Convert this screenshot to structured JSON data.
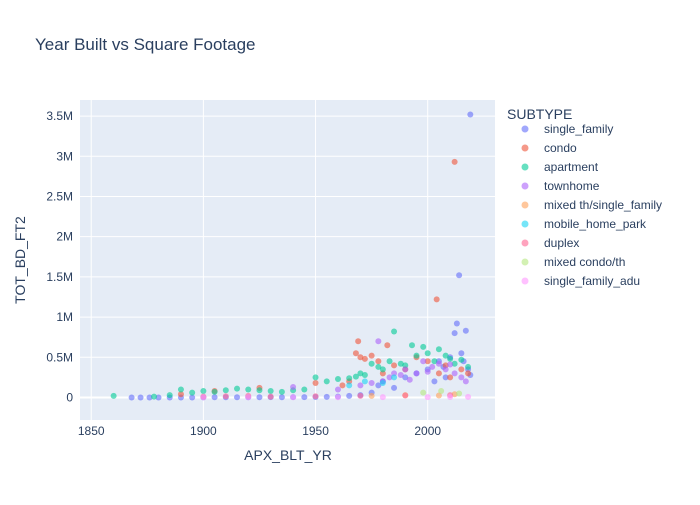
{
  "chart_data": {
    "type": "scatter",
    "title": "Year Built vs Square Footage",
    "xlabel": "APX_BLT_YR",
    "ylabel": "TOT_BD_FT2",
    "xlim": [
      1845,
      2030
    ],
    "ylim": [
      -280000,
      3700000
    ],
    "x_ticks": [
      1850,
      1900,
      1950,
      2000
    ],
    "y_ticks": [
      {
        "value": 0,
        "label": "0"
      },
      {
        "value": 500000,
        "label": "0.5M"
      },
      {
        "value": 1000000,
        "label": "1M"
      },
      {
        "value": 1500000,
        "label": "1.5M"
      },
      {
        "value": 2000000,
        "label": "2M"
      },
      {
        "value": 2500000,
        "label": "2.5M"
      },
      {
        "value": 3000000,
        "label": "3M"
      },
      {
        "value": 3500000,
        "label": "3.5M"
      }
    ],
    "grid": true,
    "legend_title": "SUBTYPE",
    "legend_position": "right",
    "series": [
      {
        "name": "single_family",
        "color": "#636efa",
        "x": [
          1868,
          1872,
          1876,
          1880,
          1885,
          1890,
          1895,
          1900,
          1905,
          1910,
          1915,
          1920,
          1925,
          1930,
          1935,
          1940,
          1945,
          1950,
          1955,
          1960,
          1965,
          1970,
          1975,
          1978,
          1980,
          1985,
          1990,
          1995,
          2000,
          2003,
          2005,
          2007,
          2008,
          2010,
          2012,
          2013,
          2014,
          2015,
          2016,
          2017,
          2018,
          2019,
          2019
        ],
        "y": [
          0,
          0,
          0,
          0,
          0,
          0,
          0,
          2000,
          3000,
          2500,
          3000,
          3500,
          3000,
          4000,
          3500,
          4000,
          5000,
          6000,
          8000,
          10000,
          20000,
          30000,
          60000,
          150000,
          200000,
          120000,
          250000,
          300000,
          350000,
          200000,
          450000,
          380000,
          250000,
          500000,
          800000,
          920000,
          1520000,
          550000,
          450000,
          830000,
          350000,
          3520000,
          280000
        ]
      },
      {
        "name": "condo",
        "color": "#ef553b",
        "x": [
          1890,
          1905,
          1925,
          1950,
          1962,
          1965,
          1968,
          1969,
          1970,
          1972,
          1975,
          1978,
          1980,
          1982,
          1985,
          1990,
          1995,
          2000,
          2004,
          2005,
          2008,
          2010,
          2012,
          2015,
          2018
        ],
        "y": [
          40000,
          80000,
          120000,
          180000,
          150000,
          200000,
          550000,
          700000,
          500000,
          480000,
          520000,
          450000,
          300000,
          650000,
          400000,
          350000,
          500000,
          450000,
          1220000,
          300000,
          400000,
          250000,
          2930000,
          350000,
          300000
        ]
      },
      {
        "name": "apartment",
        "color": "#00cc96",
        "x": [
          1860,
          1878,
          1885,
          1890,
          1895,
          1900,
          1905,
          1910,
          1915,
          1920,
          1925,
          1930,
          1935,
          1940,
          1945,
          1950,
          1955,
          1960,
          1965,
          1968,
          1970,
          1972,
          1975,
          1978,
          1980,
          1983,
          1985,
          1988,
          1990,
          1993,
          1995,
          1998,
          2000,
          2003,
          2005,
          2008,
          2010,
          2012,
          2015,
          2018
        ],
        "y": [
          20000,
          10000,
          30000,
          100000,
          60000,
          80000,
          70000,
          90000,
          110000,
          100000,
          90000,
          80000,
          70000,
          90000,
          100000,
          250000,
          200000,
          230000,
          240000,
          260000,
          300000,
          280000,
          420000,
          380000,
          350000,
          450000,
          820000,
          420000,
          400000,
          650000,
          520000,
          630000,
          550000,
          450000,
          600000,
          520000,
          480000,
          420000,
          470000,
          380000
        ]
      },
      {
        "name": "townhome",
        "color": "#ab63fa",
        "x": [
          1940,
          1960,
          1970,
          1975,
          1978,
          1980,
          1983,
          1985,
          1988,
          1990,
          1992,
          1995,
          1998,
          2000,
          2002,
          2005,
          2008,
          2010,
          2012,
          2015,
          2017
        ],
        "y": [
          130000,
          100000,
          150000,
          180000,
          700000,
          200000,
          250000,
          300000,
          280000,
          350000,
          220000,
          300000,
          450000,
          320000,
          380000,
          420000,
          350000,
          410000,
          300000,
          250000,
          200000
        ]
      },
      {
        "name": "mixed th/single_family",
        "color": "#ffa15a",
        "x": [
          1975,
          1990,
          2005,
          2012
        ],
        "y": [
          20000,
          30000,
          25000,
          40000
        ]
      },
      {
        "name": "mobile_home_park",
        "color": "#19d3f3",
        "x": [
          1965,
          1972,
          1980,
          1985
        ],
        "y": [
          150000,
          200000,
          180000,
          250000
        ]
      },
      {
        "name": "duplex",
        "color": "#ff6692",
        "x": [
          1900,
          1910,
          1920,
          1930,
          1950,
          1970,
          1990,
          2010
        ],
        "y": [
          10000,
          15000,
          20000,
          10000,
          15000,
          20000,
          25000,
          30000
        ]
      },
      {
        "name": "mixed condo/th",
        "color": "#b6e880",
        "x": [
          1998,
          2006,
          2014
        ],
        "y": [
          60000,
          80000,
          50000
        ]
      },
      {
        "name": "single_family_adu",
        "color": "#ff97ff",
        "x": [
          1900,
          1920,
          1940,
          1960,
          1980,
          2000,
          2010,
          2018
        ],
        "y": [
          2000,
          3000,
          2500,
          3000,
          4000,
          5000,
          6000,
          8000
        ]
      }
    ]
  }
}
